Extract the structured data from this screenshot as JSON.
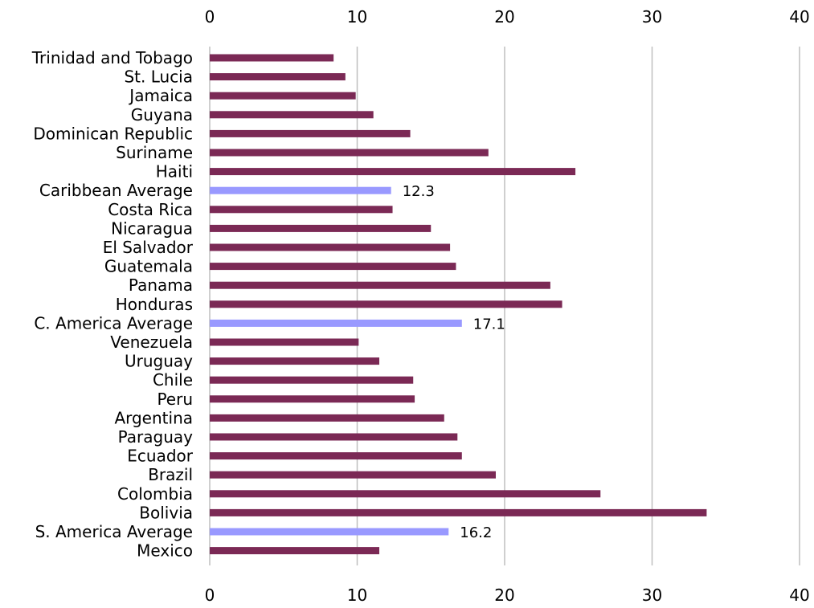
{
  "chart_data": {
    "type": "bar",
    "orientation": "horizontal",
    "categories": [
      "Trinidad and Tobago",
      "St. Lucia",
      "Jamaica",
      "Guyana",
      "Dominican Republic",
      "Suriname",
      "Haiti",
      "Caribbean Average",
      "Costa Rica",
      "Nicaragua",
      "El Salvador",
      "Guatemala",
      "Panama",
      "Honduras",
      "C. America Average",
      "Venezuela",
      "Uruguay",
      "Chile",
      "Peru",
      "Argentina",
      "Paraguay",
      "Ecuador",
      "Brazil",
      "Colombia",
      "Bolivia",
      "S. America Average",
      "Mexico"
    ],
    "values": [
      8.4,
      9.2,
      9.9,
      11.1,
      13.6,
      18.9,
      24.8,
      12.3,
      12.4,
      15.0,
      16.3,
      16.7,
      23.1,
      23.9,
      17.1,
      10.1,
      11.5,
      13.8,
      13.9,
      15.9,
      16.8,
      17.1,
      19.4,
      26.5,
      33.7,
      16.2,
      11.5
    ],
    "highlight": [
      false,
      false,
      false,
      false,
      false,
      false,
      false,
      true,
      false,
      false,
      false,
      false,
      false,
      false,
      true,
      false,
      false,
      false,
      false,
      false,
      false,
      false,
      false,
      false,
      false,
      true,
      false
    ],
    "data_labels": [
      "",
      "",
      "",
      "",
      "",
      "",
      "",
      "12.3",
      "",
      "",
      "",
      "",
      "",
      "",
      "17.1",
      "",
      "",
      "",
      "",
      "",
      "",
      "",
      "",
      "",
      "",
      "16.2",
      ""
    ],
    "xlim": [
      0,
      40
    ],
    "ticks": [
      "0",
      "10",
      "20",
      "30",
      "40"
    ],
    "grid": true,
    "colors": {
      "bar": "#7b2955",
      "highlight": "#9999ff",
      "grid": "#bfbfbf"
    }
  }
}
